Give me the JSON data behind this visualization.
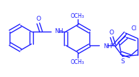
{
  "bg_color": "#ffffff",
  "line_color": "#1a1aff",
  "text_color": "#1a1aff",
  "line_width": 1.0,
  "figsize": [
    2.03,
    1.13
  ],
  "dpi": 100,
  "xlim": [
    0,
    203
  ],
  "ylim": [
    0,
    113
  ]
}
